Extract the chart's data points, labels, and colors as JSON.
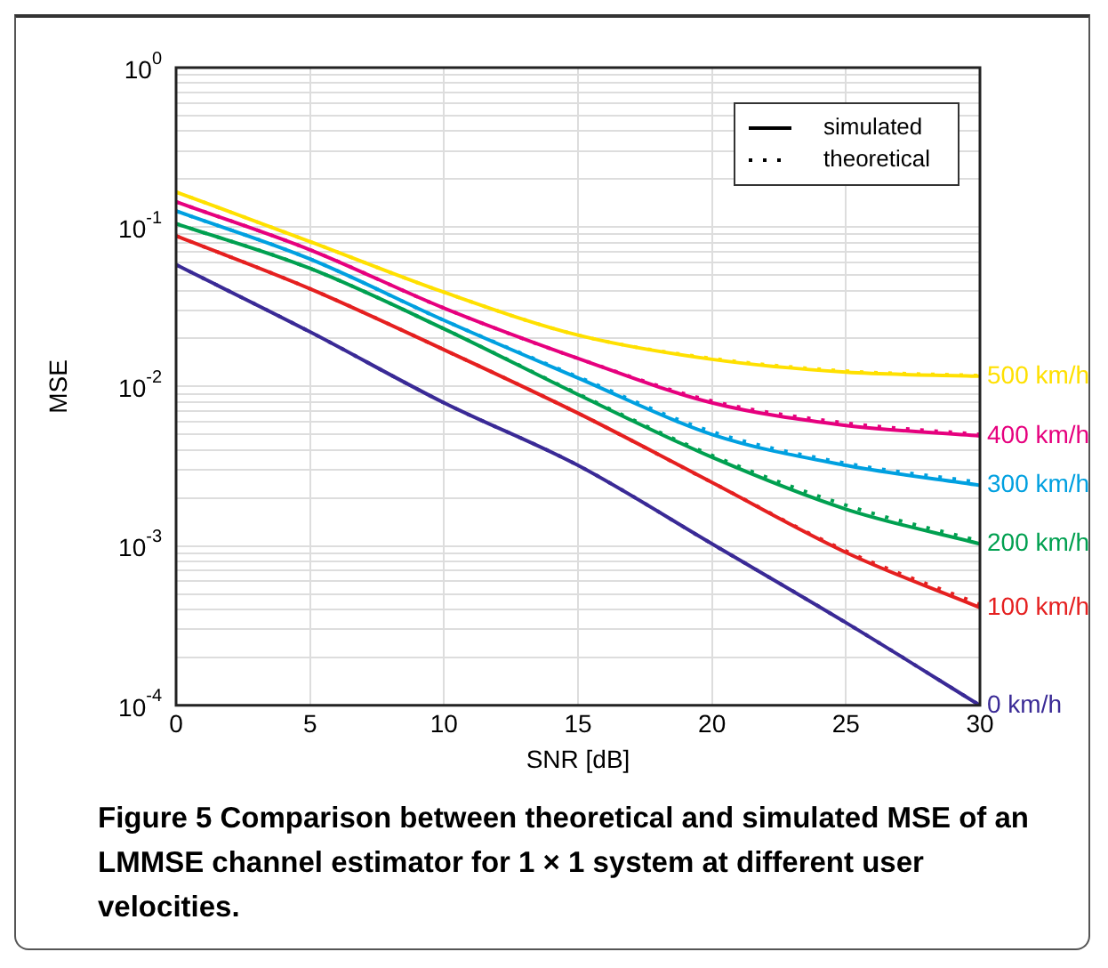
{
  "chart_data": {
    "type": "line",
    "xlabel": "SNR [dB]",
    "ylabel": "MSE",
    "annotations": [
      "Figure 5 Comparison between theoretical and simulated MSE of an LMMSE channel estimator for 1 × 1 system at different user velocities."
    ],
    "x": [
      0,
      5,
      10,
      15,
      20,
      25,
      30
    ],
    "xlim": [
      0,
      30
    ],
    "xticks": [
      0,
      5,
      10,
      15,
      20,
      25,
      30
    ],
    "log": "y",
    "ylim": [
      0.0001,
      1
    ],
    "yticks": [
      {
        "value": 0.0001,
        "label": "10$^{-4}$"
      },
      {
        "value": 0.0002,
        "label": null
      },
      {
        "value": 0.0003,
        "label": null
      },
      {
        "value": 0.0004,
        "label": null
      },
      {
        "value": 0.0005,
        "label": null
      },
      {
        "value": 0.0006,
        "label": null
      },
      {
        "value": 0.0007,
        "label": null
      },
      {
        "value": 0.0008,
        "label": null
      },
      {
        "value": 0.0009,
        "label": null
      },
      {
        "value": 0.001,
        "label": "10$^{-3}$"
      },
      {
        "value": 0.002,
        "label": null
      },
      {
        "value": 0.003,
        "label": null
      },
      {
        "value": 0.004,
        "label": null
      },
      {
        "value": 0.005,
        "label": null
      },
      {
        "value": 0.006,
        "label": null
      },
      {
        "value": 0.007,
        "label": null
      },
      {
        "value": 0.008,
        "label": null
      },
      {
        "value": 0.009,
        "label": null
      },
      {
        "value": 0.01,
        "label": "10$^{-2}$"
      },
      {
        "value": 0.02,
        "label": null
      },
      {
        "value": 0.03,
        "label": null
      },
      {
        "value": 0.04,
        "label": null
      },
      {
        "value": 0.05,
        "label": null
      },
      {
        "value": 0.06,
        "label": null
      },
      {
        "value": 0.07,
        "label": null
      },
      {
        "value": 0.08,
        "label": null
      },
      {
        "value": 0.09,
        "label": null
      },
      {
        "value": 0.1,
        "label": "10$^{-1}$"
      },
      {
        "value": 0.2,
        "label": null
      },
      {
        "value": 0.3,
        "label": null
      },
      {
        "value": 0.4,
        "label": null
      },
      {
        "value": 0.5,
        "label": null
      },
      {
        "value": 0.6,
        "label": null
      },
      {
        "value": 0.7,
        "label": null
      },
      {
        "value": 0.8,
        "label": null
      },
      {
        "value": 0.9,
        "label": null
      },
      {
        "value": 1,
        "label": "10$^{0}$"
      }
    ],
    "grid": true,
    "legend": "top right",
    "marker": "none",
    "series": [
      {
        "name": "simulated",
        "color": "#000000",
        "line_style": "solid",
        "values": [
          null,
          null,
          null,
          null,
          null,
          null,
          null
        ]
      },
      {
        "name": "theoretical",
        "color": "#000000",
        "line_style": "dotted",
        "values": [
          null,
          null,
          null,
          null,
          null,
          null,
          null
        ]
      },
      {
        "name": "500 km/h",
        "color": "#ffe000",
        "line_style": "solid",
        "values": [
          0.166,
          0.081,
          0.039,
          0.021,
          0.0148,
          0.0123,
          0.0116
        ]
      },
      {
        "color": "#ffe000",
        "line_style": "dotted",
        "values": [
          0.166,
          0.081,
          0.039,
          0.021,
          0.015,
          0.0125,
          0.0117
        ]
      },
      {
        "name": "400 km/h",
        "color": "#e6007e",
        "line_style": "solid",
        "values": [
          0.144,
          0.072,
          0.031,
          0.015,
          0.0079,
          0.0057,
          0.0049
        ]
      },
      {
        "color": "#e6007e",
        "line_style": "dotted",
        "values": [
          0.144,
          0.072,
          0.031,
          0.015,
          0.0081,
          0.0059,
          0.005
        ]
      },
      {
        "name": "300 km/h",
        "color": "#00a0e0",
        "line_style": "solid",
        "values": [
          0.126,
          0.063,
          0.026,
          0.0113,
          0.005,
          0.0032,
          0.0024
        ]
      },
      {
        "color": "#00a0e0",
        "line_style": "dotted",
        "values": [
          0.126,
          0.063,
          0.026,
          0.0115,
          0.0052,
          0.0033,
          0.0025
        ]
      },
      {
        "name": "200 km/h",
        "color": "#00a050",
        "line_style": "solid",
        "values": [
          0.105,
          0.055,
          0.023,
          0.0089,
          0.0036,
          0.0017,
          0.00103
        ]
      },
      {
        "color": "#00a050",
        "line_style": "dotted",
        "values": [
          0.105,
          0.055,
          0.023,
          0.009,
          0.0037,
          0.0018,
          0.00107
        ]
      },
      {
        "name": "100 km/h",
        "color": "#e52020",
        "line_style": "solid",
        "values": [
          0.088,
          0.041,
          0.017,
          0.0068,
          0.0025,
          0.00091,
          0.00041
        ]
      },
      {
        "color": "#e52020",
        "line_style": "dotted",
        "values": [
          0.088,
          0.041,
          0.017,
          0.0068,
          0.0025,
          0.00093,
          0.00043
        ]
      },
      {
        "name": "0 km/h",
        "color": "#3a2a96",
        "line_style": "solid",
        "values": [
          0.058,
          0.022,
          0.0079,
          0.0032,
          0.00103,
          0.00033,
          0.0001
        ]
      },
      {
        "color": "#3a2a96",
        "line_style": "dotted",
        "values": [
          0.058,
          0.022,
          0.0079,
          0.0032,
          0.00103,
          0.00033,
          0.0001
        ]
      }
    ]
  }
}
